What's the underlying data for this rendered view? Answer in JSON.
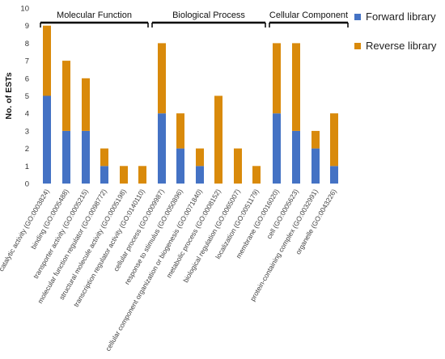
{
  "chart_data": {
    "type": "bar",
    "stacked": true,
    "ylabel": "No. of ESTs",
    "ylim": [
      0,
      10
    ],
    "yticks": [
      0,
      1,
      2,
      3,
      4,
      5,
      6,
      7,
      8,
      9,
      10
    ],
    "grid": false,
    "legend_position": "right",
    "groups": [
      {
        "label": "Molecular Function",
        "start": 0,
        "end": 5
      },
      {
        "label": "Biological Process",
        "start": 6,
        "end": 11
      },
      {
        "label": "Cellular Component",
        "start": 12,
        "end": 15
      }
    ],
    "categories": [
      "catalytic activity (GO:0003824)",
      "binding (GO:0005488)",
      "transporter activity (GO:0005215)",
      "molecular function regulator (GO:0098772)",
      "structural molecule activity (GO:0005198)",
      "transcription regulator activity (GO:0140110)",
      "cellular process (GO:0009987)",
      "response to stimulus (GO:0050896)",
      "cellular component organization or biogenesis (GO:0071840)",
      "metabolic process (GO:0008152)",
      "biological regulation (GO:0065007)",
      "localization (GO:0051179)",
      "membrane (GO:0016020)",
      "cell (GO:0005623)",
      "protein-containing complex (GO:0032991)",
      "organelle (GO:0043226)"
    ],
    "series": [
      {
        "name": "Forward library",
        "color": "#4472C4",
        "values": [
          5,
          3,
          3,
          1,
          0,
          0,
          4,
          2,
          1,
          0,
          0,
          0,
          4,
          3,
          2,
          1
        ]
      },
      {
        "name": "Reverse library",
        "color": "#D98A0B",
        "values": [
          4,
          4,
          3,
          1,
          1,
          1,
          4,
          2,
          1,
          5,
          2,
          1,
          4,
          5,
          1,
          3
        ]
      }
    ]
  }
}
